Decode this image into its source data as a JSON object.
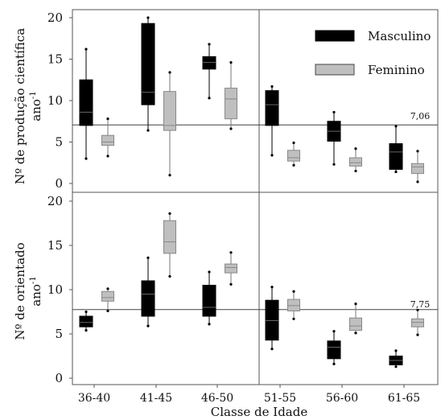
{
  "chart_data": [
    {
      "type": "box",
      "ylabel": "Nº de produção científica",
      "ylabel_unit": "ano",
      "ylabel_exp": "-1",
      "ylim": [
        0,
        22
      ],
      "yticks": [
        "0",
        "5",
        "10",
        "15",
        "20"
      ],
      "categories": [
        "36-40",
        "41-45",
        "46-50",
        "51-55",
        "56-60",
        "61-65"
      ],
      "reference": {
        "value": 7.06,
        "label": "7,06"
      },
      "legend_position": "top-right",
      "series": [
        {
          "name": "Masculino",
          "color": "#000000",
          "boxes": [
            {
              "min": 3.0,
              "q1": 7.0,
              "median": 8.6,
              "q3": 12.5,
              "max": 16.2,
              "outliers": []
            },
            {
              "min": 6.4,
              "q1": 9.5,
              "median": 11.0,
              "q3": 19.3,
              "max": 20.0,
              "outliers": []
            },
            {
              "min": 10.3,
              "q1": 13.8,
              "median": 14.6,
              "q3": 15.3,
              "max": 16.8,
              "outliers": []
            },
            {
              "min": 3.4,
              "q1": 7.0,
              "median": 9.5,
              "q3": 11.2,
              "max": 11.7,
              "outliers": []
            },
            {
              "min": 2.3,
              "q1": 5.1,
              "median": 6.3,
              "q3": 7.5,
              "max": 8.6,
              "outliers": []
            },
            {
              "min": 1.4,
              "q1": 1.7,
              "median": 3.8,
              "q3": 4.8,
              "max": 6.9,
              "outliers": []
            }
          ]
        },
        {
          "name": "Feminino",
          "color": "#bfbfbf",
          "boxes": [
            {
              "min": 3.3,
              "q1": 4.6,
              "median": 5.0,
              "q3": 5.8,
              "max": 7.8,
              "outliers": []
            },
            {
              "min": 1.0,
              "q1": 6.4,
              "median": 7.0,
              "q3": 11.1,
              "max": 13.4,
              "outliers": []
            },
            {
              "min": 6.6,
              "q1": 7.8,
              "median": 10.2,
              "q3": 11.5,
              "max": 14.6,
              "outliers": []
            },
            {
              "min": 2.2,
              "q1": 2.7,
              "median": 3.1,
              "q3": 4.0,
              "max": 4.9,
              "outliers": []
            },
            {
              "min": 1.5,
              "q1": 2.1,
              "median": 2.5,
              "q3": 3.1,
              "max": 4.2,
              "outliers": []
            },
            {
              "min": 0.2,
              "q1": 1.2,
              "median": 2.0,
              "q3": 2.4,
              "max": 3.9,
              "outliers": []
            }
          ]
        }
      ]
    },
    {
      "type": "box",
      "ylabel": "Nº de orientado",
      "ylabel_unit": "ano",
      "ylabel_exp": "-1",
      "ylim": [
        0,
        20
      ],
      "yticks": [
        "0",
        "5",
        "10",
        "15",
        "20"
      ],
      "xlabel": "Classe de Idade",
      "categories": [
        "36-40",
        "41-45",
        "46-50",
        "51-55",
        "56-60",
        "61-65"
      ],
      "reference": {
        "value": 7.75,
        "label": "7,75"
      },
      "series": [
        {
          "name": "Masculino",
          "color": "#000000",
          "boxes": [
            {
              "min": 5.4,
              "q1": 5.8,
              "median": 6.3,
              "q3": 7.0,
              "max": 7.5,
              "outliers": []
            },
            {
              "min": 5.9,
              "q1": 7.0,
              "median": 9.5,
              "q3": 11.0,
              "max": 13.6,
              "outliers": []
            },
            {
              "min": 6.1,
              "q1": 7.0,
              "median": 8.0,
              "q3": 10.5,
              "max": 12.0,
              "outliers": []
            },
            {
              "min": 3.3,
              "q1": 4.3,
              "median": 6.5,
              "q3": 8.8,
              "max": 10.3,
              "outliers": []
            },
            {
              "min": 1.6,
              "q1": 2.2,
              "median": 3.5,
              "q3": 4.2,
              "max": 5.3,
              "outliers": []
            },
            {
              "min": 1.3,
              "q1": 1.5,
              "median": 2.0,
              "q3": 2.5,
              "max": 3.1,
              "outliers": []
            }
          ]
        },
        {
          "name": "Feminino",
          "color": "#bfbfbf",
          "boxes": [
            {
              "min": 7.6,
              "q1": 8.7,
              "median": 9.1,
              "q3": 9.8,
              "max": 10.1,
              "outliers": []
            },
            {
              "min": 11.5,
              "q1": 14.1,
              "median": 15.4,
              "q3": 17.8,
              "max": 18.6,
              "outliers": []
            },
            {
              "min": 10.6,
              "q1": 11.9,
              "median": 12.5,
              "q3": 12.9,
              "max": 14.2,
              "outliers": []
            },
            {
              "min": 6.7,
              "q1": 7.6,
              "median": 8.2,
              "q3": 8.9,
              "max": 9.8,
              "outliers": []
            },
            {
              "min": 5.1,
              "q1": 5.4,
              "median": 5.9,
              "q3": 6.8,
              "max": 8.4,
              "outliers": []
            },
            {
              "min": 4.9,
              "q1": 5.8,
              "median": 6.3,
              "q3": 6.7,
              "max": 7.7,
              "outliers": []
            }
          ]
        }
      ]
    }
  ]
}
